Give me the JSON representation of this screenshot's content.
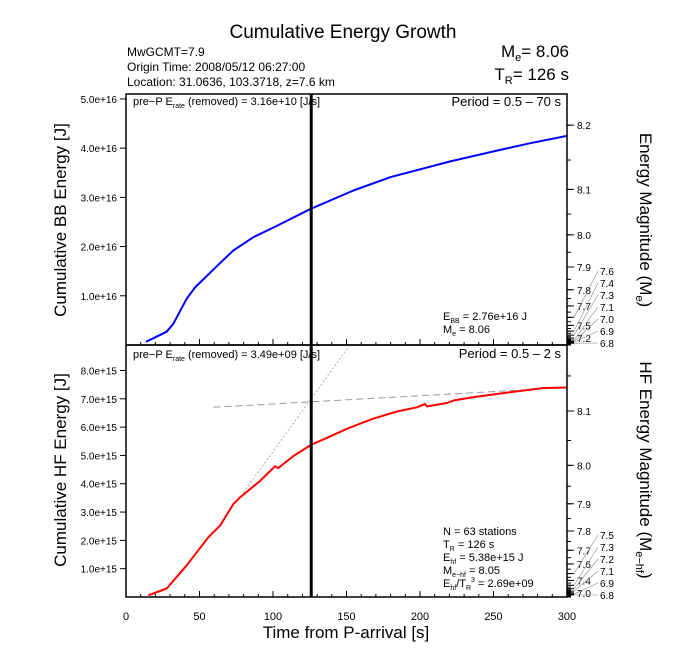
{
  "title": "Cumulative Energy Growth",
  "info": {
    "line1": "MwGCMT=7.9",
    "line2": "Origin Time: 2008/05/12 06:27:00",
    "line3": "Location: 31.0636, 103.3718, z=7.6 km"
  },
  "summary": {
    "me_label": "M",
    "me_sub": "e",
    "me_value": "= 8.06",
    "tr_label": "T",
    "tr_sub": "R",
    "tr_value": "= 126 s"
  },
  "xlabel": "Time from P-arrival [s]",
  "chart_data": [
    {
      "type": "line",
      "panel": "top",
      "ylabel": "Cumulative BB Energy [J]",
      "y2label": {
        "main": "Energy Magnitude (M",
        "sub": "e",
        "end": ")"
      },
      "xlim": [
        0,
        300
      ],
      "ylim": [
        0,
        5.1e+16
      ],
      "xticks": [
        0,
        50,
        100,
        150,
        200,
        250,
        300
      ],
      "yticks": [
        1e+16,
        2e+16,
        3e+16,
        4e+16,
        5e+16
      ],
      "ytick_labels": [
        "1.0e+16",
        "2.0e+16",
        "3.0e+16",
        "4.0e+16",
        "5.0e+16"
      ],
      "y2_formula_offset": 2.9,
      "y2ticks": [
        8.2,
        8.1,
        8.0,
        7.9,
        7.8,
        7.7,
        7.6,
        7.5,
        7.4,
        7.3,
        7.2,
        7.1,
        7.0,
        6.9,
        6.8
      ],
      "color": "#0000ff",
      "vline_x": 126,
      "x": [
        13.6,
        27.7,
        32.2,
        41.3,
        47,
        61.7,
        73,
        86.7,
        102.6,
        125.2,
        154.7,
        179.7,
        220.6,
        252.3,
        275,
        300
      ],
      "y": [
        660000000000000.0,
        2700000000000000.0,
        4300000000000000.0,
        9400000000000000.0,
        1.17e+16,
        1.6e+16,
        1.92e+16,
        2.19e+16,
        2.42e+16,
        2.76e+16,
        3.14e+16,
        3.41e+16,
        3.73e+16,
        3.95e+16,
        4.1e+16,
        4.25e+16
      ],
      "annotations": {
        "prep": {
          "a": "pre−P E",
          "sub": "rate",
          "b": " (removed) = 3.16e+10 [J/s]"
        },
        "period": "Period = 0.5 – 70 s",
        "energy": {
          "a": "E",
          "sub": "BB",
          "b": " = 2.76e+16 J"
        },
        "mag": {
          "a": "M",
          "sub": "e",
          "b": " = 8.06"
        }
      }
    },
    {
      "type": "line",
      "panel": "bottom",
      "ylabel": "Cumulative HF Energy [J]",
      "y2label": {
        "main": "HF Energy Magnitude (M",
        "sub": "e−hf",
        "end": ")"
      },
      "xlim": [
        0,
        300
      ],
      "ylim": [
        0,
        8900000000000000.0
      ],
      "xticks": [
        0,
        50,
        100,
        150,
        200,
        250,
        300
      ],
      "xtick_labels": [
        "0",
        "50",
        "100",
        "150",
        "200",
        "250",
        "300"
      ],
      "yticks": [
        1000000000000000.0,
        2000000000000000.0,
        3000000000000000.0,
        4000000000000000.0,
        5000000000000000.0,
        6000000000000000.0,
        7000000000000000.0,
        8000000000000000.0
      ],
      "ytick_labels": [
        "1.0e+15",
        "2.0e+15",
        "3.0e+15",
        "4.0e+15",
        "5.0e+15",
        "6.0e+15",
        "7.0e+15",
        "8.0e+15"
      ],
      "y2_formula_offset": 2.445,
      "y2ticks": [
        8.1,
        8.0,
        7.9,
        7.8,
        7.7,
        7.6,
        7.5,
        7.4,
        7.3,
        7.2,
        7.1,
        7.0,
        6.9,
        6.8
      ],
      "color": "#ff0000",
      "vline_x": 126,
      "x": [
        15.2,
        27.7,
        41.3,
        56,
        64,
        73,
        77.6,
        91.2,
        101.4,
        103.5,
        113.9,
        126.4,
        136.6,
        150.2,
        168.4,
        184.3,
        197.9,
        203.5,
        204.7,
        218.3,
        222.8,
        236.4,
        256.8,
        284,
        300
      ],
      "y": [
        60000000000000.0,
        300000000000000.0,
        1120000000000000.0,
        2110000000000000.0,
        2520000000000000.0,
        3280000000000000.0,
        3520000000000000.0,
        4100000000000000.0,
        4620000000000000.0,
        4550000000000000.0,
        4980000000000000.0,
        5390000000000000.0,
        5620000000000000.0,
        5940000000000000.0,
        6300000000000000.0,
        6550000000000000.0,
        6700000000000000.0,
        6820000000000000.0,
        6730000000000000.0,
        6850000000000000.0,
        6940000000000000.0,
        7060000000000000.0,
        7200000000000000.0,
        7380000000000000.0,
        7400000000000000.0
      ],
      "fit_lines": [
        {
          "x": [
            79.9,
            154.7
          ],
          "y": [
            3690000000000000.0,
            9070000000000000.0
          ],
          "style": "dotted"
        },
        {
          "x": [
            59.5,
            300
          ],
          "y": [
            6700000000000000.0,
            7400000000000000.0
          ],
          "style": "dashed"
        }
      ],
      "annotations": {
        "prep": {
          "a": "pre−P E",
          "sub": "rate",
          "b": " (removed) = 3.49e+09 [J/s]"
        },
        "period": "Period = 0.5 – 2 s",
        "stations": "N = 63 stations",
        "tr": {
          "a": "T",
          "sub": "R",
          "b": " = 126  s"
        },
        "energy": {
          "a": "E",
          "sub": "hf",
          "b": " = 5.38e+15 J"
        },
        "mag": {
          "a": "M",
          "sub": "e−hf",
          "b": " = 8.05"
        },
        "ratio": {
          "a": "E",
          "sub": "hf",
          "b": "/T",
          "sub2": "R",
          "sup": "3",
          "c": " =  2.69e+09"
        }
      }
    }
  ]
}
